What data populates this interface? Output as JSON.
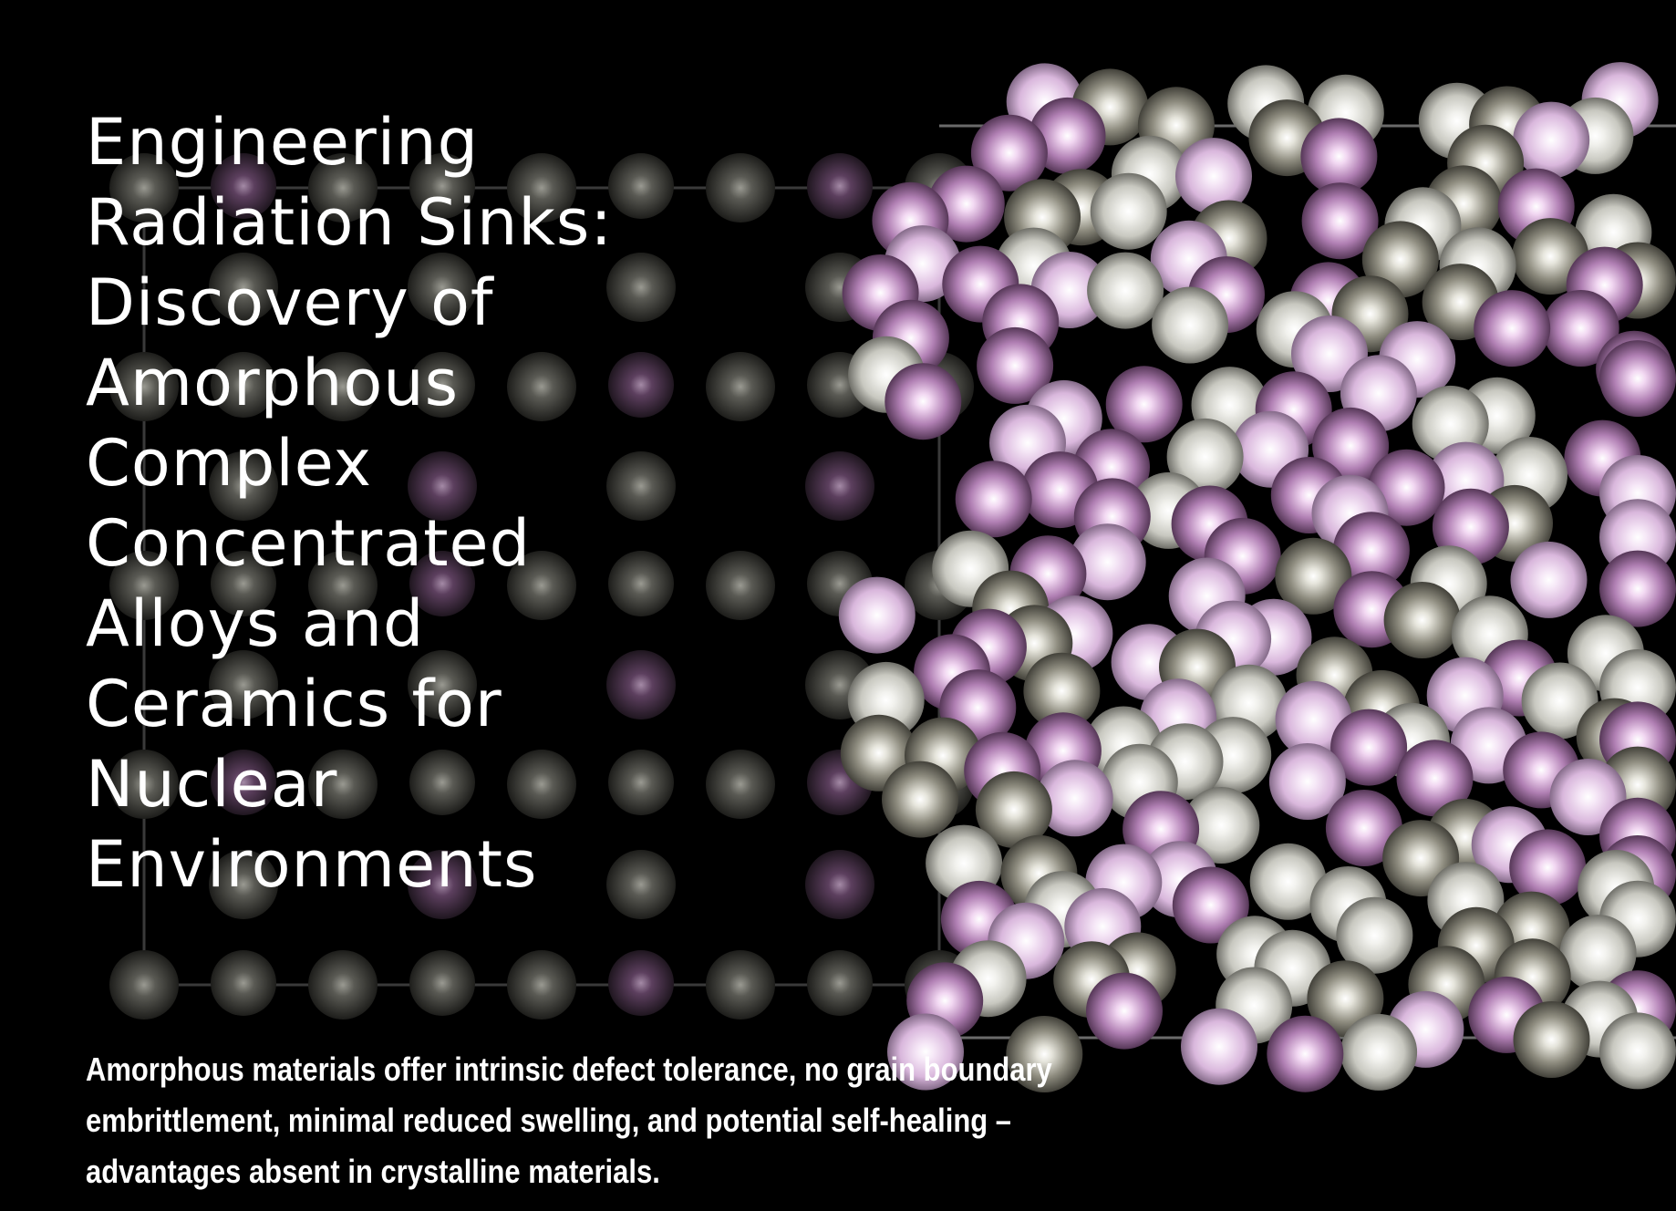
{
  "slide": {
    "title_lines": [
      "Engineering",
      "Radiation Sinks:",
      "Discovery of",
      "Amorphous",
      "Complex",
      "Concentrated",
      "Alloys and",
      "Ceramics for",
      "Nuclear",
      "Environments"
    ],
    "caption_lines": [
      "Amorphous materials offer intrinsic defect tolerance, no grain boundary",
      "embrittlement, minimal reduced swelling, and potential self-healing –",
      "advantages absent in crystalline materials."
    ]
  },
  "art": {
    "background": "#000000",
    "atom_colors": {
      "purple": "#b07fb3",
      "light_purple": "#d9b7dc",
      "gray": "#8f8d80",
      "light_gray": "#c8c8c0"
    },
    "frame_color": "#555555"
  }
}
